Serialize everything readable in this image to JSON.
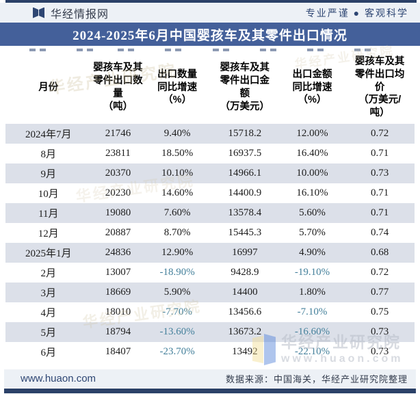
{
  "brandbar": {
    "brand": "华经情报网",
    "slogan": "专业严谨 ● 客观科学"
  },
  "title": "2024-2025年6月中国婴孩车及其零件出口情况",
  "table": {
    "columns": [
      "月份",
      "婴孩车及其\n零件出口数\n量\n（吨）",
      "出口数量\n同比增速\n（%）",
      "婴孩车及其\n零件出口金\n额\n（万美元）",
      "出口金额\n同比增速\n（%）",
      "婴孩车及其\n零件出口均\n价\n（万美元/\n吨）"
    ],
    "rows": [
      {
        "month": "2024年7月",
        "qty": "21746",
        "qty_yoy": "9.40%",
        "amount": "15718.2",
        "amount_yoy": "12.00%",
        "price": "0.72"
      },
      {
        "month": "8月",
        "qty": "23811",
        "qty_yoy": "18.50%",
        "amount": "16937.5",
        "amount_yoy": "16.40%",
        "price": "0.71"
      },
      {
        "month": "9月",
        "qty": "20370",
        "qty_yoy": "10.10%",
        "amount": "14966.1",
        "amount_yoy": "10.00%",
        "price": "0.73"
      },
      {
        "month": "10月",
        "qty": "20230",
        "qty_yoy": "14.60%",
        "amount": "14400.9",
        "amount_yoy": "16.10%",
        "price": "0.71"
      },
      {
        "month": "11月",
        "qty": "19080",
        "qty_yoy": "7.60%",
        "amount": "13578.4",
        "amount_yoy": "5.60%",
        "price": "0.71"
      },
      {
        "month": "12月",
        "qty": "20887",
        "qty_yoy": "8.70%",
        "amount": "15445.3",
        "amount_yoy": "5.70%",
        "price": "0.74"
      },
      {
        "month": "2025年1月",
        "qty": "24836",
        "qty_yoy": "12.90%",
        "amount": "16997",
        "amount_yoy": "4.90%",
        "price": "0.68"
      },
      {
        "month": "2月",
        "qty": "13007",
        "qty_yoy": "-18.90%",
        "amount": "9428.9",
        "amount_yoy": "-19.10%",
        "price": "0.72"
      },
      {
        "month": "3月",
        "qty": "18669",
        "qty_yoy": "5.90%",
        "amount": "14400",
        "amount_yoy": "1.80%",
        "price": "0.77"
      },
      {
        "month": "4月",
        "qty": "18010",
        "qty_yoy": "-7.70%",
        "amount": "13456.6",
        "amount_yoy": "-7.10%",
        "price": "0.75"
      },
      {
        "month": "5月",
        "qty": "18794",
        "qty_yoy": "-13.60%",
        "amount": "13673.2",
        "amount_yoy": "-16.60%",
        "price": "0.73"
      },
      {
        "month": "6月",
        "qty": "18407",
        "qty_yoy": "-23.70%",
        "amount": "13492",
        "amount_yoy": "-22.10%",
        "price": "0.73"
      }
    ]
  },
  "footer": {
    "site": "www.huaon.com",
    "source": "数据来源：中国海关，华经产业研究院整理"
  },
  "watermark": {
    "brand": "华经产业研究院",
    "url": "www.huaon.com"
  },
  "colors": {
    "navy_line": "#2b4168",
    "title_bar": "#44609a",
    "bar_bg": "#edf1f6",
    "stripe": "#dce0e9",
    "negative_value": "#44809b"
  }
}
